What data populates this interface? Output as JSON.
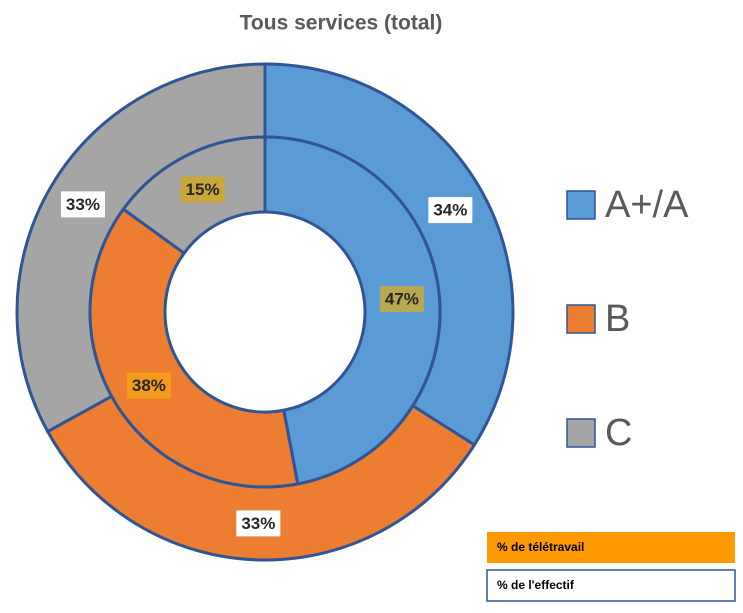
{
  "chart_data": {
    "type": "nested-donut",
    "title": "Tous services (total)",
    "categories": [
      "A+/A",
      "B",
      "C"
    ],
    "colors": [
      "#5b9bd5",
      "#ed7d31",
      "#a5a5a5"
    ],
    "series": [
      {
        "name": "% de l'effectif",
        "color": "#ffffff",
        "values": [
          34,
          33,
          33
        ],
        "value_labels": [
          "34%",
          "33%",
          "33%"
        ],
        "label_colors": [
          "#ffffff",
          "#ffffff",
          "#ffffff"
        ]
      },
      {
        "name": "% de télétravail",
        "color": "#ff9900",
        "values": [
          47,
          38,
          15
        ],
        "value_labels": [
          "47%",
          "38%",
          "15%"
        ],
        "label_colors": [
          "#b8a851",
          "#f59a1a",
          "#c9a73a"
        ]
      }
    ]
  }
}
